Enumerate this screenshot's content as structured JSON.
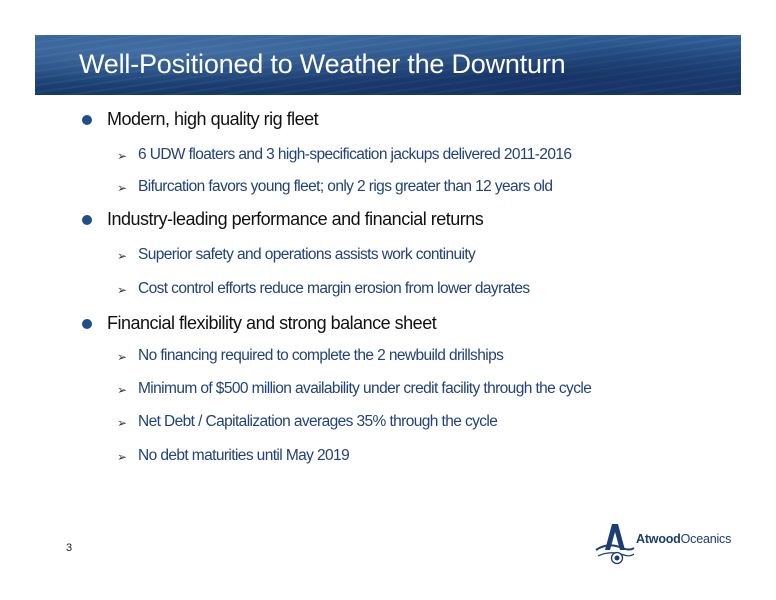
{
  "header": {
    "title": "Well-Positioned to Weather the Downturn"
  },
  "sections": [
    {
      "heading": "Modern, high quality rig fleet",
      "items": [
        "6 UDW floaters and 3 high-specification jackups delivered 2011-2016",
        "Bifurcation favors young fleet; only 2 rigs greater than 12 years old"
      ]
    },
    {
      "heading": "Industry-leading performance and financial returns",
      "items": [
        "Superior safety and operations assists work continuity",
        "Cost control efforts reduce margin erosion from lower dayrates"
      ]
    },
    {
      "heading": "Financial flexibility and strong balance sheet",
      "items": [
        "No financing required to complete the 2 newbuild drillships",
        "Minimum of $500 million availability under credit facility through the cycle",
        "Net Debt / Capitalization averages 35% through the cycle",
        "No debt maturities until May 2019"
      ]
    }
  ],
  "icons": {
    "bullet": "circle-bullet-icon",
    "sub_bullet": "arrowhead-bullet-icon",
    "sub_bullet_glyph": "➢"
  },
  "footer": {
    "page_number": "3",
    "logo": {
      "name_bold": "Atwood",
      "name_regular": "Oceanics"
    }
  },
  "colors": {
    "banner": "#214c82",
    "bullet": "#1f4e8a",
    "sub_text": "#22427a",
    "logo": "#1b3d6f"
  }
}
